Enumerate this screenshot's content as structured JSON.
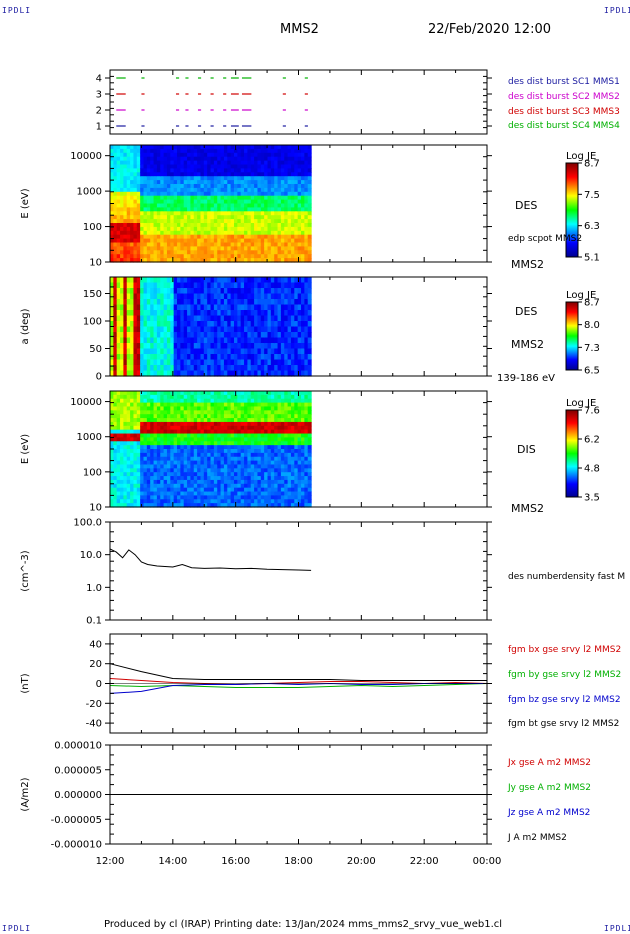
{
  "corner_label": "IPDLI",
  "header": {
    "spacecraft": "MMS2",
    "datetime": "22/Feb/2020 12:00"
  },
  "footer": "Produced by cl (IRAP)   Printing date: 13/Jan/2024   mms_mms2_srvy_vue_web1.cl",
  "colors": {
    "red": "#d00000",
    "green": "#00b000",
    "blue": "#0000cc",
    "magenta": "#cc00cc",
    "navy": "#1a1aa0"
  },
  "chart_data": [
    {
      "type": "bar",
      "panel": "burst-availability",
      "ylim": [
        0.5,
        4.5
      ],
      "yticks": [
        "1",
        "2",
        "3",
        "4"
      ],
      "legend": [
        {
          "name": "des dist burst SC1 MMS1",
          "color": "#1a1aa0",
          "level": 1
        },
        {
          "name": "des dist burst SC2 MMS2",
          "color": "#cc00cc",
          "level": 2
        },
        {
          "name": "des dist burst SC3 MMS3",
          "color": "#d00000",
          "level": 3
        },
        {
          "name": "des dist burst SC4 MMS4",
          "color": "#00b000",
          "level": 4
        }
      ],
      "intervals_hours": [
        [
          12.2,
          12.5
        ],
        [
          13.0,
          13.1
        ],
        [
          14.1,
          14.2
        ],
        [
          14.4,
          14.5
        ],
        [
          14.8,
          14.9
        ],
        [
          15.2,
          15.3
        ],
        [
          15.6,
          15.7
        ],
        [
          15.85,
          16.1
        ],
        [
          16.2,
          16.5
        ],
        [
          17.5,
          17.6
        ],
        [
          18.2,
          18.3
        ]
      ]
    },
    {
      "type": "heatmap",
      "panel": "des-energy-spectrogram",
      "ylabel": "E (eV)",
      "yscale": "log",
      "ylim": [
        10,
        20000
      ],
      "yticks": [
        "10",
        "100",
        "1000",
        "10000"
      ],
      "colorbar": {
        "title": "Log JE",
        "ticks": [
          "8.7",
          "7.5",
          "6.3",
          "5.1"
        ]
      },
      "instrument_label": "DES",
      "overlay_label": "edp scpot MMS2",
      "spacecraft_label": "MMS2",
      "data_end_hour": 18.4
    },
    {
      "type": "heatmap",
      "panel": "des-pitch-angle",
      "ylabel": "a (deg)",
      "ylim": [
        0,
        180
      ],
      "yticks": [
        "0",
        "50",
        "100",
        "150"
      ],
      "colorbar": {
        "title": "Log JE",
        "ticks": [
          "8.7",
          "8.0",
          "7.3",
          "6.5"
        ]
      },
      "instrument_label": "DES",
      "spacecraft_label": "MMS2",
      "energy_range": "139-186 eV",
      "data_end_hour": 18.4
    },
    {
      "type": "heatmap",
      "panel": "dis-energy-spectrogram",
      "ylabel": "E (eV)",
      "yscale": "log",
      "ylim": [
        10,
        20000
      ],
      "yticks": [
        "10",
        "100",
        "1000",
        "10000"
      ],
      "colorbar": {
        "title": "Log JE",
        "ticks": [
          "7.6",
          "6.2",
          "4.8",
          "3.5"
        ]
      },
      "instrument_label": "DIS",
      "spacecraft_label": "MMS2",
      "data_end_hour": 18.4
    },
    {
      "type": "line",
      "panel": "density",
      "ylabel": "(cm^-3)",
      "yscale": "log",
      "ylim": [
        0.1,
        100
      ],
      "yticks": [
        "0.1",
        "1.0",
        "10.0",
        "100.0"
      ],
      "series": [
        {
          "name": "des numberdensity fast M",
          "color": "#000000",
          "x": [
            12.0,
            12.2,
            12.4,
            12.6,
            12.8,
            13.0,
            13.2,
            13.5,
            14.0,
            14.3,
            14.6,
            15.0,
            15.5,
            16.0,
            16.5,
            17.0,
            17.5,
            18.0,
            18.4
          ],
          "y": [
            15,
            12,
            8,
            14,
            10,
            6,
            5,
            4.5,
            4.2,
            5,
            4,
            3.8,
            3.9,
            3.7,
            3.8,
            3.6,
            3.5,
            3.4,
            3.3
          ]
        }
      ]
    },
    {
      "type": "line",
      "panel": "magnetic-field",
      "ylabel": "(nT)",
      "ylim": [
        -50,
        50
      ],
      "yticks": [
        "-40",
        "-20",
        "0",
        "20",
        "40"
      ],
      "series": [
        {
          "name": "fgm bx gse srvy l2 MMS2",
          "color": "#d00000",
          "x": [
            12,
            13,
            14,
            15,
            16,
            17,
            18,
            19,
            20,
            21,
            22,
            23,
            24
          ],
          "y": [
            5,
            3,
            1,
            0,
            -1,
            0,
            1,
            2,
            2,
            1,
            0,
            1,
            0
          ]
        },
        {
          "name": "fgm by gse srvy l2 MMS2",
          "color": "#00b000",
          "x": [
            12,
            13,
            14,
            15,
            16,
            17,
            18,
            19,
            20,
            21,
            22,
            23,
            24
          ],
          "y": [
            -2,
            -3,
            -2,
            -3,
            -4,
            -4,
            -4,
            -3,
            -2,
            -3,
            -2,
            -1,
            0
          ]
        },
        {
          "name": "fgm bz gse srvy l2 MMS2",
          "color": "#0000cc",
          "x": [
            12,
            13,
            14,
            15,
            16,
            17,
            18,
            19,
            20,
            21,
            22,
            23,
            24
          ],
          "y": [
            -10,
            -8,
            -2,
            -1,
            -1,
            0,
            -1,
            0,
            -1,
            -1,
            0,
            0,
            0
          ]
        },
        {
          "name": "fgm bt gse srvy l2 MMS2",
          "color": "#000000",
          "x": [
            12,
            13,
            14,
            15,
            16,
            17,
            18,
            19,
            20,
            21,
            22,
            23,
            24
          ],
          "y": [
            20,
            12,
            5,
            4,
            4,
            4,
            4,
            4,
            3,
            3,
            3,
            3,
            3
          ]
        }
      ]
    },
    {
      "type": "line",
      "panel": "current-density",
      "ylabel": "(A/m2)",
      "ylim": [
        -1e-05,
        1e-05
      ],
      "yticks": [
        "-0.000010",
        "-0.000005",
        "0.000000",
        "0.000005",
        "0.000010"
      ],
      "series": [
        {
          "name": "Jx gse A m2 MMS2",
          "color": "#d00000",
          "x": [
            12,
            13,
            14,
            18,
            24
          ],
          "y": [
            0,
            0,
            0,
            0,
            0
          ]
        },
        {
          "name": "Jy gse A m2 MMS2",
          "color": "#00b000",
          "x": [
            12,
            13,
            14,
            18,
            24
          ],
          "y": [
            0,
            0,
            0,
            0,
            0
          ]
        },
        {
          "name": "Jz gse A m2 MMS2",
          "color": "#0000cc",
          "x": [
            12,
            13,
            14,
            18,
            24
          ],
          "y": [
            0,
            0,
            0,
            0,
            0
          ]
        },
        {
          "name": "J A m2 MMS2",
          "color": "#000000",
          "x": [
            12,
            13,
            14,
            18,
            24
          ],
          "y": [
            0,
            0,
            0,
            0,
            0
          ]
        }
      ]
    }
  ],
  "x_axis": {
    "ticks": [
      "12:00",
      "14:00",
      "16:00",
      "18:00",
      "20:00",
      "22:00",
      "00:00"
    ],
    "range_hours": [
      12,
      24
    ]
  }
}
